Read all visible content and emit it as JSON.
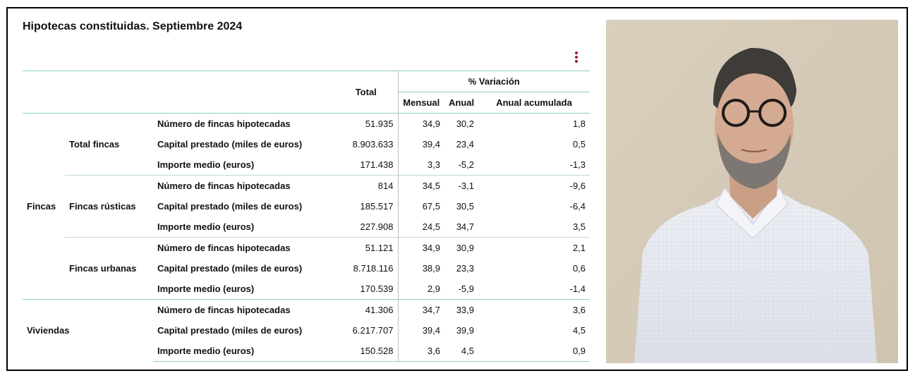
{
  "title": "Hipotecas constituidas. Septiembre 2024",
  "headers": {
    "total": "Total",
    "variacion": "% Variación",
    "mensual": "Mensual",
    "anual": "Anual",
    "anual_acumulada": "Anual acumulada"
  },
  "groups": {
    "fincas": "Fincas",
    "viviendas": "Viviendas",
    "total_fincas": "Total fincas",
    "fincas_rusticas": "Fincas rústicas",
    "fincas_urbanas": "Fincas urbanas"
  },
  "rows": [
    {
      "label": "Número de fincas hipotecadas",
      "total": "51.935",
      "mensual": "34,9",
      "anual": "30,2",
      "acum": "1,8"
    },
    {
      "label": "Capital prestado (miles de euros)",
      "total": "8.903.633",
      "mensual": "39,4",
      "anual": "23,4",
      "acum": "0,5"
    },
    {
      "label": "Importe medio (euros)",
      "total": "171.438",
      "mensual": "3,3",
      "anual": "-5,2",
      "acum": "-1,3"
    },
    {
      "label": "Número de fincas hipotecadas",
      "total": "814",
      "mensual": "34,5",
      "anual": "-3,1",
      "acum": "-9,6"
    },
    {
      "label": "Capital prestado (miles de euros)",
      "total": "185.517",
      "mensual": "67,5",
      "anual": "30,5",
      "acum": "-6,4"
    },
    {
      "label": "Importe medio (euros)",
      "total": "227.908",
      "mensual": "24,5",
      "anual": "34,7",
      "acum": "3,5"
    },
    {
      "label": "Número de fincas hipotecadas",
      "total": "51.121",
      "mensual": "34,9",
      "anual": "30,9",
      "acum": "2,1"
    },
    {
      "label": "Capital prestado (miles de euros)",
      "total": "8.718.116",
      "mensual": "38,9",
      "anual": "23,3",
      "acum": "0,6"
    },
    {
      "label": "Importe medio (euros)",
      "total": "170.539",
      "mensual": "2,9",
      "anual": "-5,9",
      "acum": "-1,4"
    },
    {
      "label": "Número de fincas hipotecadas",
      "total": "41.306",
      "mensual": "34,7",
      "anual": "33,9",
      "acum": "3,6"
    },
    {
      "label": "Capital prestado (miles de euros)",
      "total": "6.217.707",
      "mensual": "39,4",
      "anual": "39,9",
      "acum": "4,5"
    },
    {
      "label": "Importe medio (euros)",
      "total": "150.528",
      "mensual": "3,6",
      "anual": "4,5",
      "acum": "0,9"
    }
  ],
  "colors": {
    "accent_line": "#8fcfc4",
    "menu": "#9b1b30"
  },
  "icons": {
    "menu": "more-vertical-icon"
  }
}
